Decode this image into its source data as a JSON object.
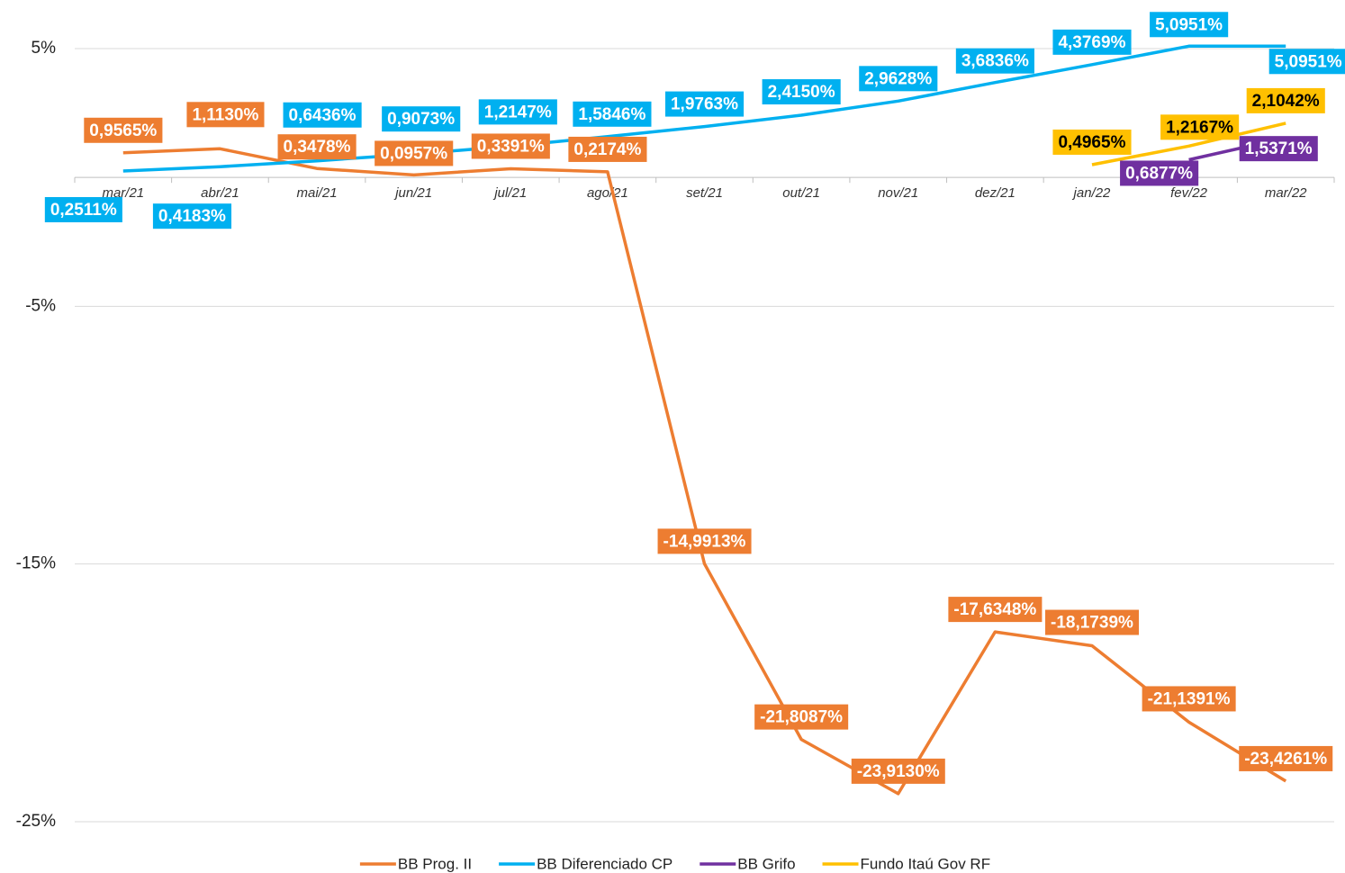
{
  "chart_data": {
    "type": "line",
    "categories": [
      "mar/21",
      "abr/21",
      "mai/21",
      "jun/21",
      "jul/21",
      "ago/21",
      "set/21",
      "out/21",
      "nov/21",
      "dez/21",
      "jan/22",
      "fev/22",
      "mar/22"
    ],
    "series": [
      {
        "name": "BB Prog. II",
        "color": "#ED7D31",
        "values": [
          0.9565,
          1.113,
          0.3478,
          0.0957,
          0.3391,
          0.2174,
          -14.9913,
          -21.8087,
          -23.913,
          -17.6348,
          -18.1739,
          -21.1391,
          -23.4261
        ],
        "value_labels": [
          "0,9565%",
          "1,1130%",
          "0,3478%",
          "0,0957%",
          "0,3391%",
          "0,2174%",
          "-14,9913%",
          "-21,8087%",
          "-23,9130%",
          "-17,6348%",
          "-18,1739%",
          "-21,1391%",
          "-23,4261%"
        ]
      },
      {
        "name": "BB Diferenciado CP",
        "color": "#00B0F0",
        "values": [
          0.2511,
          0.4183,
          0.6436,
          0.9073,
          1.2147,
          1.5846,
          1.9763,
          2.415,
          2.9628,
          3.6836,
          4.3769,
          5.0951,
          5.0951
        ],
        "value_labels": [
          "0,2511%",
          "0,4183%",
          "0,6436%",
          "0,9073%",
          "1,2147%",
          "1,5846%",
          "1,9763%",
          "2,4150%",
          "2,9628%",
          "3,6836%",
          "4,3769%",
          "5,0951%",
          "5,0951%"
        ]
      },
      {
        "name": "BB Grifo",
        "color": "#7030A0",
        "values": [
          null,
          null,
          null,
          null,
          null,
          null,
          null,
          null,
          null,
          null,
          null,
          0.6877,
          1.5371
        ],
        "value_labels": [
          null,
          null,
          null,
          null,
          null,
          null,
          null,
          null,
          null,
          null,
          null,
          "0,6877%",
          "1,5371%"
        ]
      },
      {
        "name": "Fundo Itaú Gov RF",
        "color": "#FFC000",
        "values": [
          null,
          null,
          null,
          null,
          null,
          null,
          null,
          null,
          null,
          null,
          0.4965,
          1.2167,
          2.1042
        ],
        "value_labels": [
          null,
          null,
          null,
          null,
          null,
          null,
          null,
          null,
          null,
          null,
          "0,4965%",
          "1,2167%",
          "2,1042%"
        ]
      }
    ],
    "ylim": [
      -25,
      5
    ],
    "yticks": [
      {
        "value": 5,
        "label": "5%"
      },
      {
        "value": -5,
        "label": "-5%"
      },
      {
        "value": -15,
        "label": "-15%"
      },
      {
        "value": -25,
        "label": "-25%"
      }
    ],
    "grid": true,
    "legend": "bottom"
  }
}
